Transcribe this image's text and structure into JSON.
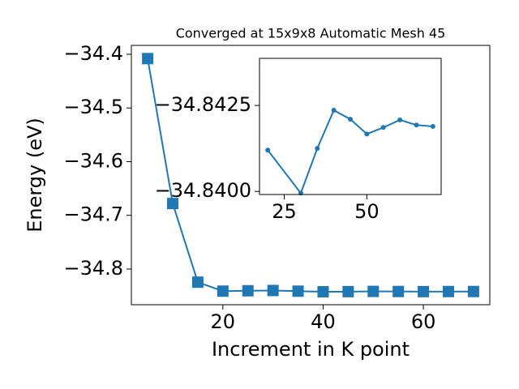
{
  "chart_data": [
    {
      "type": "line",
      "title": "Converged at 15x9x8 Automatic Mesh 45",
      "x_label": "Increment in K point",
      "y_label": "Energy (eV)",
      "x": [
        5,
        10,
        15,
        20,
        25,
        30,
        35,
        40,
        45,
        50,
        55,
        60,
        65,
        70
      ],
      "series": [
        {
          "color": "#1f77b4",
          "marker": "square",
          "values": [
            -34.408,
            -34.678,
            -34.8245,
            -34.8412,
            -34.8405,
            -34.84,
            -34.84125,
            -34.84236,
            -34.8421,
            -34.84167,
            -34.84186,
            -34.84208,
            -34.84193,
            -34.84189
          ]
        }
      ],
      "xlim": [
        1.75,
        73.25
      ],
      "ylim": [
        -34.8665,
        -34.3834
      ],
      "xticks": [
        20,
        40,
        60
      ],
      "yticks": [
        {
          "value": -34.4,
          "label": "−34.4"
        },
        {
          "value": -34.5,
          "label": "−34.5"
        },
        {
          "value": -34.6,
          "label": "−34.6"
        },
        {
          "value": -34.7,
          "label": "−34.7"
        },
        {
          "value": -34.8,
          "label": "−34.8"
        }
      ]
    },
    {
      "type": "line",
      "x": [
        20,
        30,
        35,
        40,
        45,
        50,
        55,
        60,
        65,
        70
      ],
      "series": [
        {
          "color": "#1f77b4",
          "marker": "circle",
          "values": [
            -34.8412,
            -34.83995,
            -34.84125,
            -34.84236,
            -34.8421,
            -34.84167,
            -34.84186,
            -34.84208,
            -34.84193,
            -34.84189
          ]
        }
      ],
      "xlim": [
        17.5,
        72.5
      ],
      "ylim": [
        -34.83991,
        -34.84387
      ],
      "xticks": [
        25,
        50
      ],
      "yticks": [
        {
          "value": -34.8425,
          "label": "−34.8425"
        },
        {
          "value": -34.84,
          "label": "−34.8400"
        }
      ]
    }
  ]
}
